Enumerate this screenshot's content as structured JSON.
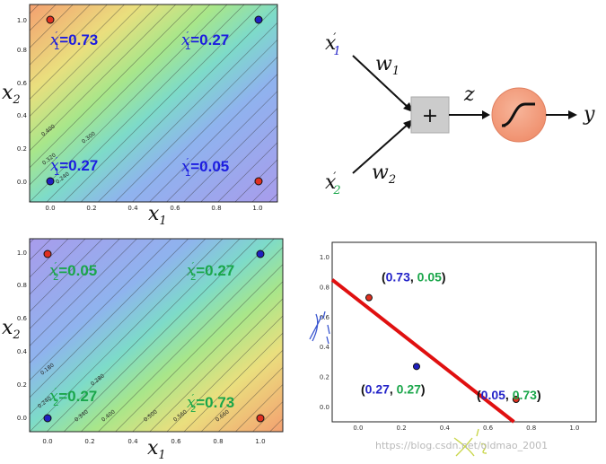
{
  "contour_plots": [
    {
      "id": "top",
      "xlabel": "x",
      "xlabel_sub": "1",
      "ylabel": "x",
      "ylabel_sub": "2",
      "xticks": [
        "0.0",
        "0.2",
        "0.4",
        "0.6",
        "0.8",
        "1.0"
      ],
      "yticks": [
        "0.0",
        "0.2",
        "0.4",
        "0.6",
        "0.8",
        "1.0"
      ],
      "contour_labels": [
        "0.400",
        "0.300",
        "0.320",
        "0.240"
      ],
      "annotations": [
        {
          "var": "x",
          "sub": "1",
          "prime": "′",
          "value": "=0.73",
          "color": "#1c1ce0"
        },
        {
          "var": "x",
          "sub": "1",
          "prime": "′",
          "value": "=0.27",
          "color": "#1c1ce0"
        },
        {
          "var": "x",
          "sub": "1",
          "prime": "′",
          "value": "=0.27",
          "color": "#1c1ce0"
        },
        {
          "var": "x",
          "sub": "1",
          "prime": "′",
          "value": "=0.05",
          "color": "#1c1ce0"
        }
      ],
      "points": [
        {
          "x": 0,
          "y": 1,
          "color": "#e03020"
        },
        {
          "x": 1,
          "y": 1,
          "color": "#2020c0"
        },
        {
          "x": 0,
          "y": 0,
          "color": "#2020c0"
        },
        {
          "x": 1,
          "y": 0,
          "color": "#e03020"
        }
      ],
      "gradient": "orange-top-left"
    },
    {
      "id": "bottom",
      "xlabel": "x",
      "xlabel_sub": "1",
      "ylabel": "x",
      "ylabel_sub": "2",
      "xticks": [
        "0.0",
        "0.2",
        "0.4",
        "0.6",
        "0.8",
        "1.0"
      ],
      "yticks": [
        "0.0",
        "0.2",
        "0.4",
        "0.6",
        "0.8",
        "1.0"
      ],
      "contour_labels": [
        "0.180",
        "0.280",
        "0.340",
        "0.400",
        "0.500",
        "0.560",
        "0.660",
        "0.240"
      ],
      "annotations": [
        {
          "var": "x",
          "sub": "2",
          "prime": "′",
          "value": "=0.05",
          "color": "#1aa64a"
        },
        {
          "var": "x",
          "sub": "2",
          "prime": "′",
          "value": "=0.27",
          "color": "#1aa64a"
        },
        {
          "var": "x",
          "sub": "2",
          "prime": "′",
          "value": "=0.27",
          "color": "#1aa64a"
        },
        {
          "var": "x",
          "sub": "2",
          "prime": "′",
          "value": "=0.73",
          "color": "#1aa64a"
        }
      ],
      "points": [
        {
          "x": 0,
          "y": 1,
          "color": "#e03020"
        },
        {
          "x": 1,
          "y": 1,
          "color": "#2020c0"
        },
        {
          "x": 0,
          "y": 0,
          "color": "#2020c0"
        },
        {
          "x": 1,
          "y": 0,
          "color": "#e03020"
        }
      ],
      "gradient": "orange-bottom-right"
    }
  ],
  "neuron": {
    "input1": {
      "var": "x",
      "sub": "1",
      "prime": "′",
      "color": "#2323c8"
    },
    "input2": {
      "var": "x",
      "sub": "2",
      "prime": "′",
      "color": "#1aa64a"
    },
    "weight1": {
      "var": "w",
      "sub": "1"
    },
    "weight2": {
      "var": "w",
      "sub": "2"
    },
    "sum_symbol": "+",
    "pre_activation": "z",
    "output": "y"
  },
  "chart_data": {
    "type": "scatter",
    "xticks": [
      "0.0",
      "0.2",
      "0.4",
      "0.6",
      "0.8",
      "1.0"
    ],
    "yticks": [
      "0.0",
      "0.2",
      "0.4",
      "0.6",
      "0.8",
      "1.0"
    ],
    "xlim": [
      -0.12,
      1.1
    ],
    "ylim": [
      -0.1,
      1.1
    ],
    "points": [
      {
        "x": 0.05,
        "y": 0.73,
        "color": "#e03020",
        "label_a": "0.73",
        "label_b": "0.05"
      },
      {
        "x": 0.27,
        "y": 0.27,
        "color": "#2020c0",
        "label_a": "0.27",
        "label_b": "0.27"
      },
      {
        "x": 0.73,
        "y": 0.05,
        "color": "#e03020",
        "label_a": "0.05",
        "label_b": "0.73"
      }
    ],
    "label_colors": {
      "first": "#2323c8",
      "second": "#1aa64a",
      "paren": "#111111"
    },
    "separator_line": {
      "x1": -0.12,
      "y1": 0.85,
      "x2": 0.72,
      "y2": -0.1,
      "color": "#e01010"
    },
    "handwritten_ylabel": "x′1",
    "handwritten_xlabel": "x′2"
  },
  "watermark": "https://blog.csdn.net/oldmao_2001"
}
